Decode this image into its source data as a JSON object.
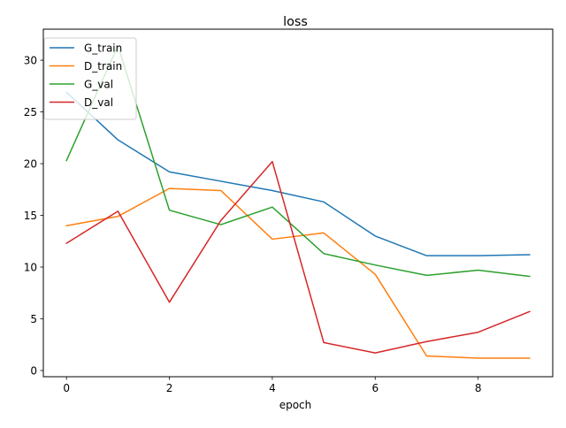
{
  "chart_data": {
    "type": "line",
    "title": "loss",
    "xlabel": "epoch",
    "ylabel": "",
    "x": [
      0,
      1,
      2,
      3,
      4,
      5,
      6,
      7,
      8,
      9
    ],
    "xlim": [
      -0.45,
      9.45
    ],
    "ylim": [
      -0.6,
      33.0
    ],
    "xticks": [
      0,
      2,
      4,
      6,
      8
    ],
    "yticks": [
      0,
      5,
      10,
      15,
      20,
      25,
      30
    ],
    "grid": false,
    "legend_position": "top-left",
    "series": [
      {
        "name": "G_train",
        "color": "#1f77b4",
        "values": [
          26.9,
          22.3,
          19.2,
          18.3,
          17.4,
          16.3,
          13.0,
          11.1,
          11.1,
          11.2
        ]
      },
      {
        "name": "D_train",
        "color": "#ff7f0e",
        "values": [
          14.0,
          14.9,
          17.6,
          17.4,
          12.7,
          13.3,
          9.3,
          1.4,
          1.2,
          1.2
        ]
      },
      {
        "name": "G_val",
        "color": "#2ca02c",
        "values": [
          20.3,
          31.4,
          15.5,
          14.1,
          15.8,
          11.3,
          10.2,
          9.2,
          9.7,
          9.1
        ]
      },
      {
        "name": "D_val",
        "color": "#d62728",
        "values": [
          12.3,
          15.4,
          6.6,
          14.5,
          20.2,
          2.7,
          1.7,
          2.8,
          3.7,
          5.7
        ]
      }
    ]
  }
}
